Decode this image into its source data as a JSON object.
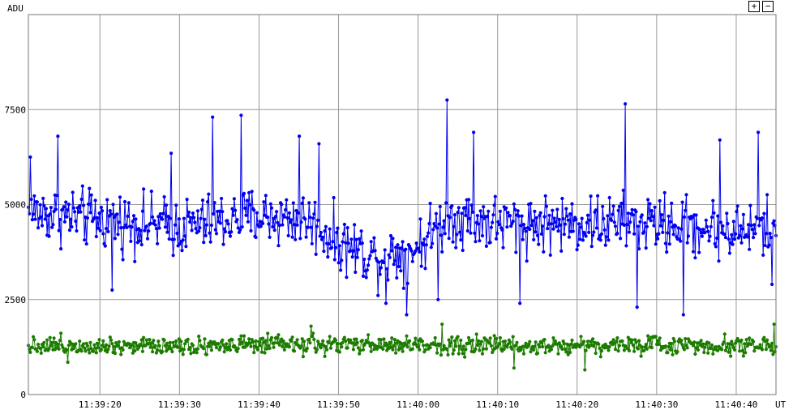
{
  "controls": {
    "zoom_in": "+",
    "zoom_out": "−"
  },
  "chart_data": {
    "type": "line",
    "ylabel": "ADU",
    "xlabel": "UT",
    "ylim": [
      0,
      10000
    ],
    "yticks": [
      0,
      2500,
      5000,
      7500
    ],
    "ytick_labels": [
      "0",
      "2500",
      "5000",
      "7500"
    ],
    "xlim_seconds_of_day": [
      42551,
      42645
    ],
    "xticks": [
      42560,
      42570,
      42580,
      42590,
      42600,
      42610,
      42620,
      42630,
      42640
    ],
    "xtick_labels": [
      "11:39:20",
      "11:39:30",
      "11:39:40",
      "11:39:50",
      "11:40:00",
      "11:40:10",
      "11:40:20",
      "11:40:30",
      "11:40:40"
    ],
    "grid": true,
    "series": [
      {
        "color": "#0000ee",
        "marker": "dot",
        "baseline": [
          [
            42551,
            4800
          ],
          [
            42560,
            4600
          ],
          [
            42570,
            4400
          ],
          [
            42580,
            4700
          ],
          [
            42586,
            4600
          ],
          [
            42590,
            4000
          ],
          [
            42595,
            3600
          ],
          [
            42600,
            3900
          ],
          [
            42604,
            4700
          ],
          [
            42610,
            4500
          ],
          [
            42620,
            4500
          ],
          [
            42630,
            4500
          ],
          [
            42640,
            4300
          ],
          [
            42645,
            4400
          ]
        ],
        "spread": 650,
        "spikes": [
          [
            42551.3,
            6250
          ],
          [
            42554.7,
            6800
          ],
          [
            42561.5,
            2750
          ],
          [
            42569.0,
            6350
          ],
          [
            42574.2,
            7300
          ],
          [
            42577.8,
            7350
          ],
          [
            42585.0,
            6800
          ],
          [
            42587.5,
            6600
          ],
          [
            42596.0,
            2400
          ],
          [
            42598.5,
            2100
          ],
          [
            42602.5,
            2500
          ],
          [
            42603.6,
            7750
          ],
          [
            42607.0,
            6900
          ],
          [
            42612.8,
            2400
          ],
          [
            42626.0,
            7650
          ],
          [
            42627.5,
            2300
          ],
          [
            42633.3,
            2100
          ],
          [
            42638.0,
            6700
          ],
          [
            42642.8,
            6900
          ],
          [
            42644.5,
            2900
          ]
        ]
      },
      {
        "color": "#1c7c00",
        "marker": "dot",
        "baseline": [
          [
            42551,
            1300
          ],
          [
            42645,
            1300
          ]
        ],
        "spread": 210,
        "spikes": [
          [
            42556.0,
            850
          ],
          [
            42586.5,
            1800
          ],
          [
            42603.0,
            1850
          ],
          [
            42612.0,
            700
          ],
          [
            42621.0,
            650
          ],
          [
            42644.8,
            1850
          ]
        ]
      }
    ]
  }
}
